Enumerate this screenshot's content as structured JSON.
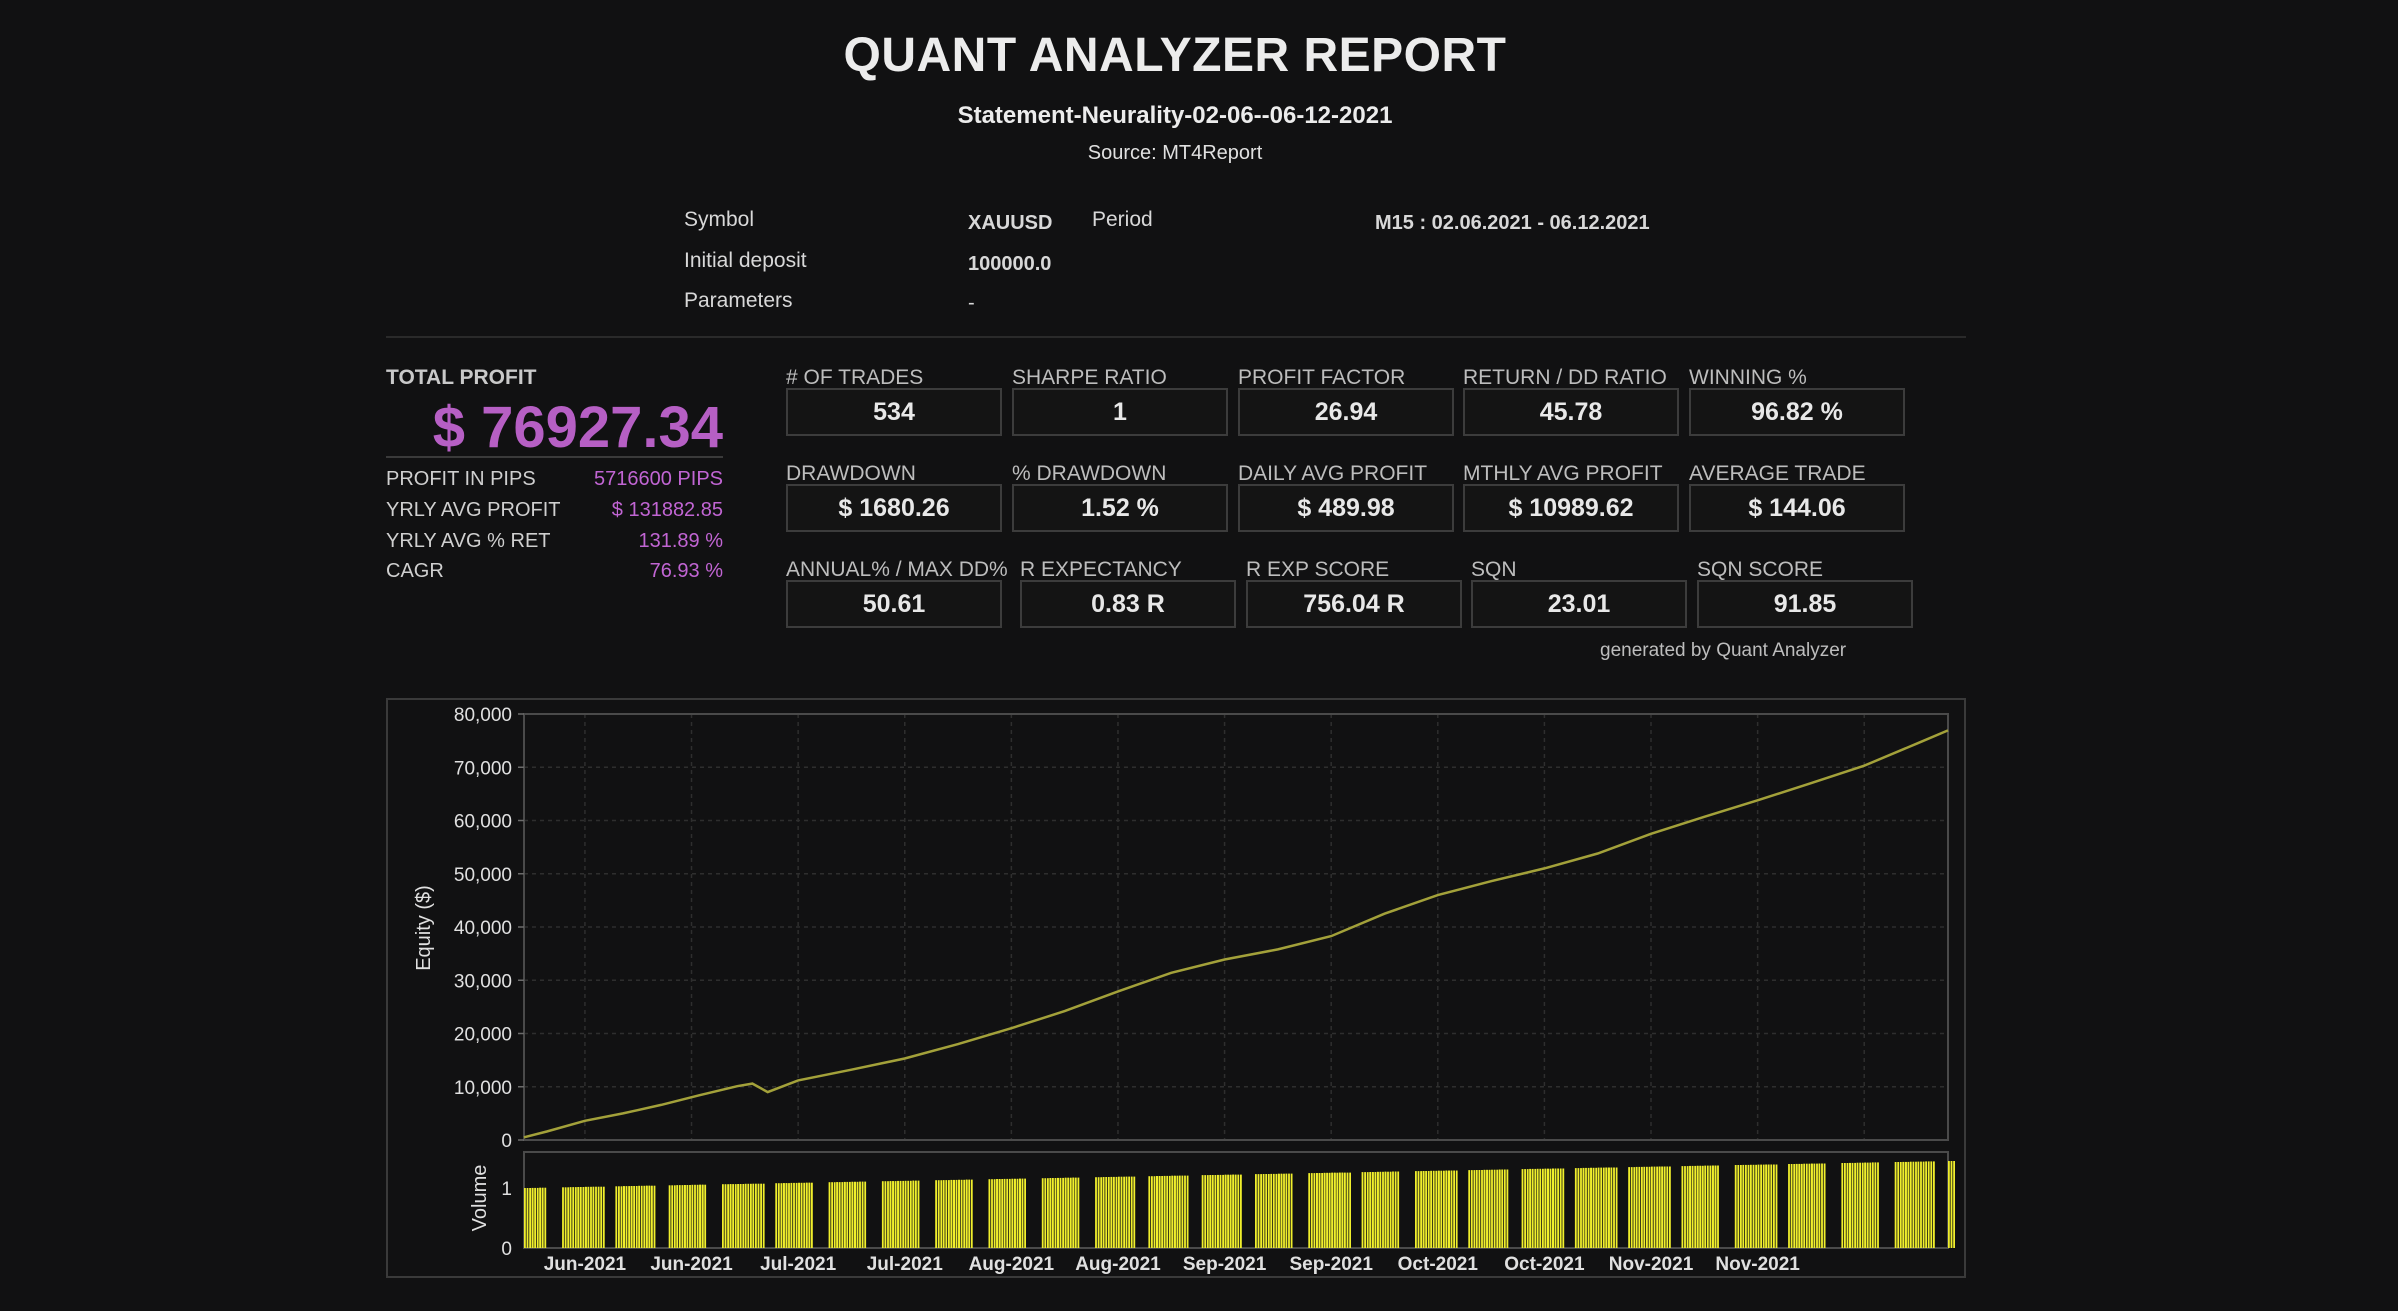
{
  "header": {
    "title": "QUANT ANALYZER REPORT",
    "subtitle": "Statement-Neurality-02-06--06-12-2021",
    "source": "Source: MT4Report"
  },
  "meta": {
    "symbol_label": "Symbol",
    "symbol_value": "XAUUSD",
    "period_label": "Period",
    "period_value": "M15 : 02.06.2021 - 06.12.2021",
    "deposit_label": "Initial deposit",
    "deposit_value": "100000.0",
    "params_label": "Parameters",
    "params_value": "-"
  },
  "summary": {
    "total_profit_label": "TOTAL PROFIT",
    "total_profit_value": "$ 76927.34",
    "rows": [
      {
        "label": "PROFIT IN PIPS",
        "value": "5716600 PIPS"
      },
      {
        "label": "YRLY AVG PROFIT",
        "value": "$ 131882.85"
      },
      {
        "label": "YRLY AVG % RET",
        "value": "131.89 %"
      },
      {
        "label": "CAGR",
        "value": "76.93 %"
      }
    ]
  },
  "stats": {
    "row1": [
      {
        "label": "# OF TRADES",
        "value": "534"
      },
      {
        "label": "SHARPE RATIO",
        "value": "1"
      },
      {
        "label": "PROFIT FACTOR",
        "value": "26.94"
      },
      {
        "label": "RETURN / DD RATIO",
        "value": "45.78"
      },
      {
        "label": "WINNING %",
        "value": "96.82 %"
      }
    ],
    "row2": [
      {
        "label": "DRAWDOWN",
        "value": "$ 1680.26"
      },
      {
        "label": "% DRAWDOWN",
        "value": "1.52 %"
      },
      {
        "label": "DAILY AVG PROFIT",
        "value": "$ 489.98"
      },
      {
        "label": "MTHLY AVG PROFIT",
        "value": "$ 10989.62"
      },
      {
        "label": "AVERAGE TRADE",
        "value": "$ 144.06"
      }
    ],
    "row3": [
      {
        "label": "ANNUAL% / MAX DD%",
        "value": "50.61"
      },
      {
        "label": "R EXPECTANCY",
        "value": "0.83 R"
      },
      {
        "label": "R EXP SCORE",
        "value": "756.04 R"
      },
      {
        "label": "SQN",
        "value": "23.01"
      },
      {
        "label": "SQN SCORE",
        "value": "91.85"
      }
    ]
  },
  "footer_note": "generated by Quant Analyzer",
  "colors": {
    "background": "#111112",
    "accent_purple": "#b65fc4",
    "equity_line": "#a3a13a",
    "volume_bar": "#f0ef2c"
  },
  "chart_data": {
    "type": "line",
    "ylabel": "Equity ($)",
    "ylim": [
      0,
      80000
    ],
    "yticks": [
      "0",
      "10,000",
      "20,000",
      "30,000",
      "40,000",
      "50,000",
      "60,000",
      "70,000",
      "80,000"
    ],
    "xticks": [
      "Jun-2021",
      "Jun-2021",
      "Jul-2021",
      "Jul-2021",
      "Aug-2021",
      "Aug-2021",
      "Sep-2021",
      "Sep-2021",
      "Oct-2021",
      "Oct-2021",
      "Nov-2021",
      "Nov-2021"
    ],
    "grid": true,
    "series": [
      {
        "x": [
          "2021-06-02",
          "2021-06-05",
          "2021-06-10",
          "2021-06-15",
          "2021-06-20",
          "2021-06-25",
          "2021-06-30",
          "2021-07-02",
          "2021-07-04",
          "2021-07-08",
          "2021-07-15",
          "2021-07-22",
          "2021-07-29",
          "2021-08-05",
          "2021-08-12",
          "2021-08-19",
          "2021-08-26",
          "2021-09-02",
          "2021-09-09",
          "2021-09-16",
          "2021-09-23",
          "2021-09-30",
          "2021-10-07",
          "2021-10-14",
          "2021-10-21",
          "2021-10-28",
          "2021-11-04",
          "2021-11-11",
          "2021-11-18",
          "2021-11-25",
          "2021-12-02",
          "2021-12-06"
        ],
        "values": [
          500,
          1600,
          3600,
          5000,
          6600,
          8400,
          10100,
          10600,
          9000,
          11200,
          13200,
          15300,
          18000,
          21000,
          24200,
          27900,
          31400,
          33900,
          35800,
          38300,
          42500,
          46000,
          48600,
          51000,
          53800,
          57500,
          60700,
          63800,
          67000,
          70300,
          74500,
          76927
        ]
      }
    ],
    "volume": {
      "ylabel": "Volume",
      "ylim": [
        0,
        1.6
      ],
      "yticks": [
        "0",
        "1"
      ]
    }
  }
}
